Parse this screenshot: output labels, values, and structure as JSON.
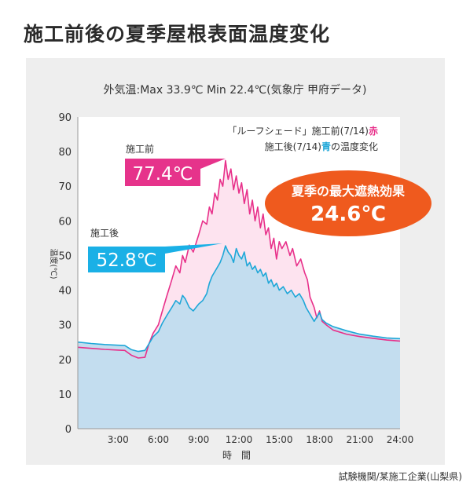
{
  "page_title": "施工前後の夏季屋根表面温度変化",
  "source_note": "試験機関/某施工企業(山梨県)",
  "colors": {
    "before_line": "#e8308a",
    "before_fill": "#fde3ef",
    "after_line": "#1fa7d8",
    "after_fill": "#c3ddef",
    "before_label_bg": "#e6338b",
    "after_label_bg": "#1ab0e6",
    "effect_badge_bg": "#ef5a1e",
    "plot_bg": "#ffffff",
    "panel_bg": "#eeeeee"
  },
  "chart_data": {
    "type": "area",
    "subtitle": "外気温:Max 33.9℃  Min 22.4℃(気象庁 甲府データ)",
    "xlabel": "時　間",
    "ylabel": "温度(℃)",
    "ylim": [
      0,
      90
    ],
    "xlim": [
      0,
      24
    ],
    "grid": false,
    "y_ticks": [
      0,
      10,
      20,
      30,
      40,
      50,
      60,
      70,
      80,
      90
    ],
    "x_ticks": [
      "3:00",
      "6:00",
      "9:00",
      "12:00",
      "15:00",
      "18:00",
      "21:00",
      "24:00"
    ],
    "legend": {
      "line1_before_red": "「ルーフシェード」施工前(7/14)",
      "line1_red": "赤",
      "line2_before_blue": "施工後(7/14)",
      "line2_blue": "青",
      "line2_after_blue": "の温度変化"
    },
    "labels": {
      "before_caption": "施工前",
      "before_value": "77.4℃",
      "after_caption": "施工後",
      "after_value": "52.8℃"
    },
    "effect": {
      "title": "夏季の最大遮熱効果",
      "value": "24.6℃"
    },
    "series": [
      {
        "name": "施工前",
        "points": [
          [
            0,
            23.5
          ],
          [
            1,
            23.2
          ],
          [
            2,
            22.9
          ],
          [
            3,
            22.7
          ],
          [
            3.5,
            22.6
          ],
          [
            4,
            21.2
          ],
          [
            4.5,
            20.4
          ],
          [
            5,
            20.6
          ],
          [
            5.3,
            24.5
          ],
          [
            5.6,
            27.5
          ],
          [
            6,
            30
          ],
          [
            6.3,
            34
          ],
          [
            6.6,
            38
          ],
          [
            7,
            43
          ],
          [
            7.3,
            47
          ],
          [
            7.6,
            45
          ],
          [
            7.8,
            50
          ],
          [
            8,
            48
          ],
          [
            8.3,
            53
          ],
          [
            8.6,
            51
          ],
          [
            9,
            56
          ],
          [
            9.3,
            60
          ],
          [
            9.6,
            59
          ],
          [
            9.8,
            64
          ],
          [
            10,
            62
          ],
          [
            10.2,
            68
          ],
          [
            10.4,
            66
          ],
          [
            10.6,
            72
          ],
          [
            10.8,
            70
          ],
          [
            11,
            77.4
          ],
          [
            11.2,
            72
          ],
          [
            11.4,
            75
          ],
          [
            11.6,
            69
          ],
          [
            11.8,
            73
          ],
          [
            12,
            68
          ],
          [
            12.2,
            71
          ],
          [
            12.4,
            65
          ],
          [
            12.6,
            69
          ],
          [
            12.8,
            62
          ],
          [
            13,
            66
          ],
          [
            13.2,
            60
          ],
          [
            13.4,
            64
          ],
          [
            13.6,
            58
          ],
          [
            13.8,
            62
          ],
          [
            14,
            56
          ],
          [
            14.2,
            58
          ],
          [
            14.4,
            52
          ],
          [
            14.6,
            55
          ],
          [
            14.8,
            49
          ],
          [
            15,
            54
          ],
          [
            15.2,
            52
          ],
          [
            15.5,
            54
          ],
          [
            15.8,
            50
          ],
          [
            16,
            52
          ],
          [
            16.3,
            47
          ],
          [
            16.6,
            49
          ],
          [
            16.9,
            45
          ],
          [
            17.1,
            43
          ],
          [
            17.3,
            38
          ],
          [
            17.6,
            35
          ],
          [
            17.8,
            32
          ],
          [
            18,
            34
          ],
          [
            18.2,
            31
          ],
          [
            18.5,
            30
          ],
          [
            19,
            28.5
          ],
          [
            20,
            27.3
          ],
          [
            21,
            26.6
          ],
          [
            22,
            26.1
          ],
          [
            23,
            25.6
          ],
          [
            24,
            25.3
          ]
        ]
      },
      {
        "name": "施工後",
        "points": [
          [
            0,
            25
          ],
          [
            1,
            24.6
          ],
          [
            2,
            24.3
          ],
          [
            3,
            24.1
          ],
          [
            3.5,
            24
          ],
          [
            4,
            22.8
          ],
          [
            4.5,
            22.3
          ],
          [
            5,
            22.6
          ],
          [
            5.3,
            24.5
          ],
          [
            5.6,
            26.5
          ],
          [
            6,
            28
          ],
          [
            6.3,
            30.5
          ],
          [
            6.6,
            32.5
          ],
          [
            7,
            35
          ],
          [
            7.3,
            37
          ],
          [
            7.6,
            36
          ],
          [
            7.8,
            38.5
          ],
          [
            8,
            37.5
          ],
          [
            8.3,
            35
          ],
          [
            8.6,
            34
          ],
          [
            9,
            36
          ],
          [
            9.3,
            37
          ],
          [
            9.6,
            39
          ],
          [
            9.8,
            42
          ],
          [
            10,
            44
          ],
          [
            10.3,
            46
          ],
          [
            10.6,
            48
          ],
          [
            10.8,
            50
          ],
          [
            11,
            52.8
          ],
          [
            11.2,
            51
          ],
          [
            11.4,
            50
          ],
          [
            11.6,
            48
          ],
          [
            11.8,
            52
          ],
          [
            12,
            50
          ],
          [
            12.2,
            49
          ],
          [
            12.4,
            51
          ],
          [
            12.6,
            47
          ],
          [
            12.8,
            48
          ],
          [
            13,
            46
          ],
          [
            13.2,
            47
          ],
          [
            13.4,
            45
          ],
          [
            13.6,
            46
          ],
          [
            13.8,
            44
          ],
          [
            14,
            45
          ],
          [
            14.2,
            42
          ],
          [
            14.4,
            43
          ],
          [
            14.6,
            41
          ],
          [
            14.8,
            42
          ],
          [
            15,
            40
          ],
          [
            15.3,
            41
          ],
          [
            15.6,
            39
          ],
          [
            15.9,
            40
          ],
          [
            16.2,
            38
          ],
          [
            16.5,
            39
          ],
          [
            16.8,
            37
          ],
          [
            17,
            35
          ],
          [
            17.3,
            33
          ],
          [
            17.6,
            31
          ],
          [
            18,
            33.5
          ],
          [
            18.2,
            31.5
          ],
          [
            18.5,
            30.5
          ],
          [
            19,
            29.5
          ],
          [
            20,
            28.3
          ],
          [
            21,
            27.3
          ],
          [
            22,
            26.7
          ],
          [
            23,
            26.2
          ],
          [
            24,
            26
          ]
        ]
      }
    ]
  }
}
